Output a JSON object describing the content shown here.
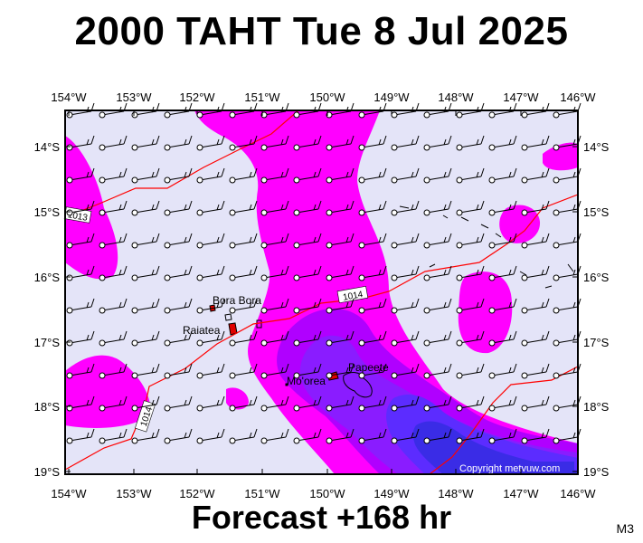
{
  "title": "2000 TAHT Tue 8 Jul 2025",
  "footer": "Forecast +168 hr",
  "model": "M3",
  "copyright": "Copyright metvuw.com",
  "lon_labels": [
    "154°W",
    "153°W",
    "152°W",
    "151°W",
    "150°W",
    "149°W",
    "148°W",
    "147°W",
    "146°W"
  ],
  "lat_labels": [
    "14°S",
    "15°S",
    "16°S",
    "17°S",
    "18°S",
    "19°S"
  ],
  "places": [
    {
      "name": "Bora Bora",
      "lon": -151.75,
      "lat": -16.5
    },
    {
      "name": "Raiatea",
      "lon": -151.45,
      "lat": -16.85
    },
    {
      "name": "Mo'orea",
      "lon": -149.85,
      "lat": -17.55
    },
    {
      "name": "Papeete",
      "lon": -149.57,
      "lat": -17.53
    }
  ],
  "isobars": [
    {
      "label": "1013"
    },
    {
      "label": "1014"
    },
    {
      "label": "1014"
    }
  ],
  "colors": {
    "background": "#e4e4f8",
    "magenta": "#ff00ff",
    "violet": "#b000ff",
    "purple": "#8a1cff",
    "blue": "#5c2cff",
    "deepblue": "#3a2ce6",
    "isobar": "#ff0000"
  }
}
